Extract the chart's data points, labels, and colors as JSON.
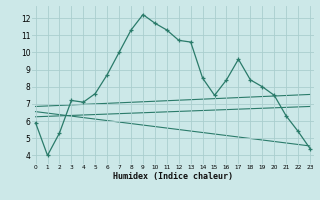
{
  "main_x": [
    0,
    1,
    2,
    3,
    4,
    5,
    6,
    7,
    8,
    9,
    10,
    11,
    12,
    13,
    14,
    15,
    16,
    17,
    18,
    19,
    20,
    21,
    22,
    23
  ],
  "main_y": [
    5.9,
    4.0,
    5.3,
    7.2,
    7.1,
    7.6,
    8.7,
    10.0,
    11.3,
    12.2,
    11.7,
    11.3,
    10.7,
    10.6,
    8.5,
    7.5,
    8.4,
    9.6,
    8.4,
    8.0,
    7.5,
    6.3,
    5.4,
    4.4
  ],
  "trend_lines": [
    {
      "x0": 0,
      "y0": 6.85,
      "x1": 23,
      "y1": 7.55
    },
    {
      "x0": 0,
      "y0": 6.25,
      "x1": 23,
      "y1": 6.85
    },
    {
      "x0": 0,
      "y0": 6.55,
      "x1": 23,
      "y1": 4.55
    }
  ],
  "line_color": "#2a7b6a",
  "bg_color": "#cce8e8",
  "grid_color": "#aacece",
  "xlabel": "Humidex (Indice chaleur)",
  "ylim": [
    3.5,
    12.7
  ],
  "xlim": [
    -0.3,
    23.3
  ],
  "yticks": [
    4,
    5,
    6,
    7,
    8,
    9,
    10,
    11,
    12
  ],
  "xticks": [
    0,
    1,
    2,
    3,
    4,
    5,
    6,
    7,
    8,
    9,
    10,
    11,
    12,
    13,
    14,
    15,
    16,
    17,
    18,
    19,
    20,
    21,
    22,
    23
  ]
}
